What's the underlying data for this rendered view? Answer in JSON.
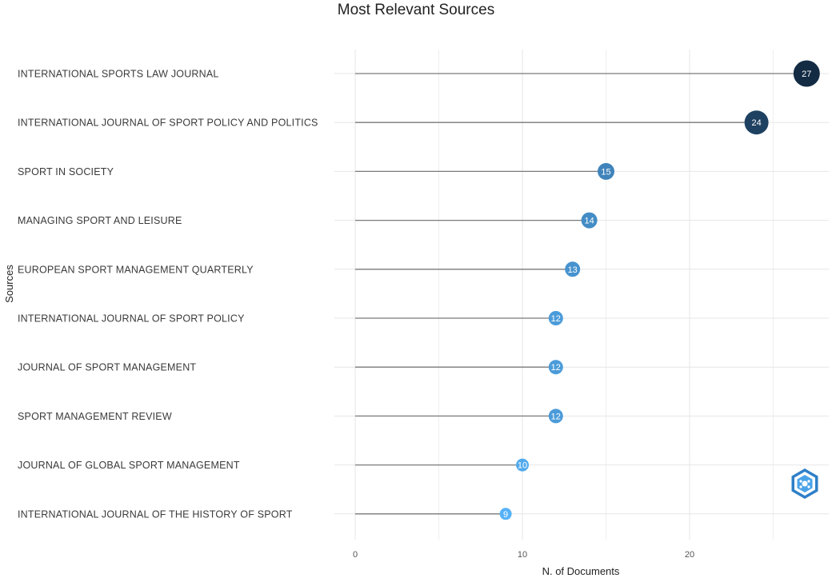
{
  "chart_data": {
    "type": "lollipop",
    "title": "Most Relevant Sources",
    "xlabel": "N. of Documents",
    "ylabel": "Sources",
    "xlim": [
      0,
      28
    ],
    "xticks": [
      0,
      10,
      20
    ],
    "grid": true,
    "categories": [
      "INTERNATIONAL SPORTS LAW JOURNAL",
      "INTERNATIONAL JOURNAL OF SPORT POLICY AND POLITICS",
      "SPORT IN SOCIETY",
      "MANAGING SPORT AND LEISURE",
      "EUROPEAN SPORT MANAGEMENT QUARTERLY",
      "INTERNATIONAL JOURNAL OF SPORT POLICY",
      "JOURNAL OF SPORT MANAGEMENT",
      "SPORT MANAGEMENT REVIEW",
      "JOURNAL OF GLOBAL SPORT MANAGEMENT",
      "INTERNATIONAL JOURNAL OF THE HISTORY OF SPORT"
    ],
    "values": [
      27,
      24,
      15,
      14,
      13,
      12,
      12,
      12,
      10,
      9
    ]
  },
  "colors": {
    "high": "#132b43",
    "low": "#56b1f7",
    "segment": "#7a7a7a",
    "grid": "#e6e6e6"
  },
  "logo": {
    "icon": "bibliometrix-logo-icon"
  }
}
